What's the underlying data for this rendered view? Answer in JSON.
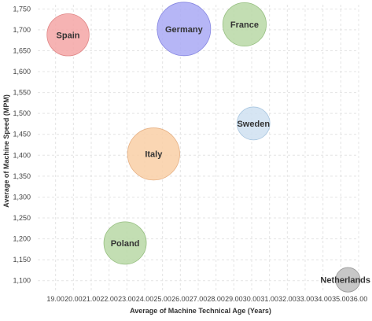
{
  "chart_data": {
    "type": "scatter",
    "subtype": "bubble",
    "title": "",
    "xlabel": "Average of Machine Technical Age (Years)",
    "ylabel": "Average of Machine Speed (MPM)",
    "xlim": [
      18.0,
      36.0
    ],
    "ylim": [
      1075,
      1760
    ],
    "x_ticks": [
      19,
      20,
      21,
      22,
      23,
      24,
      25,
      26,
      27,
      28,
      29,
      30,
      31,
      32,
      33,
      34,
      35,
      36
    ],
    "x_tick_labels": [
      "19.00",
      "20.00",
      "21.00",
      "22.00",
      "23.00",
      "24.00",
      "25.00",
      "26.00",
      "27.00",
      "28.00",
      "29.00",
      "30.00",
      "31.00",
      "32.00",
      "33.00",
      "34.00",
      "35.00",
      "36.00"
    ],
    "y_ticks": [
      1100,
      1150,
      1200,
      1250,
      1300,
      1350,
      1400,
      1450,
      1500,
      1550,
      1600,
      1650,
      1700,
      1750
    ],
    "y_tick_labels": [
      "1,100",
      "1,150",
      "1,200",
      "1,250",
      "1,300",
      "1,350",
      "1,400",
      "1,450",
      "1,500",
      "1,550",
      "1,600",
      "1,650",
      "1,700",
      "1,750"
    ],
    "grid": true,
    "legend": "none",
    "points": [
      {
        "label": "Spain",
        "x": 19.7,
        "y": 1688,
        "size": 0.62,
        "color": "#f4a6a6",
        "stroke": "#e08686"
      },
      {
        "label": "Germany",
        "x": 26.2,
        "y": 1702,
        "size": 1.0,
        "color": "#a9a9f5",
        "stroke": "#8585e0"
      },
      {
        "label": "France",
        "x": 29.6,
        "y": 1713,
        "size": 0.66,
        "color": "#b8d8a6",
        "stroke": "#96bf80"
      },
      {
        "label": "Sweden",
        "x": 30.1,
        "y": 1476,
        "size": 0.38,
        "color": "#cfe1f1",
        "stroke": "#a8c6e0"
      },
      {
        "label": "Italy",
        "x": 24.5,
        "y": 1403,
        "size": 0.95,
        "color": "#f9cfa6",
        "stroke": "#e6b083"
      },
      {
        "label": "Poland",
        "x": 22.9,
        "y": 1190,
        "size": 0.63,
        "color": "#b8d8a6",
        "stroke": "#96bf80"
      },
      {
        "label": "Netherlands",
        "x": 35.4,
        "y": 1102,
        "size": 0.21,
        "color": "#bdbdbd",
        "stroke": "#999999"
      }
    ]
  }
}
